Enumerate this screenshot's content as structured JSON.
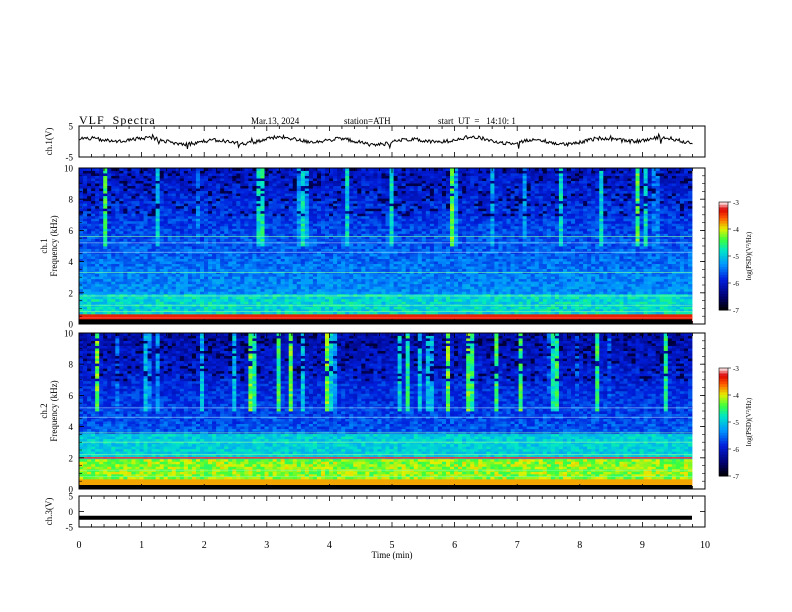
{
  "header": {
    "title": "VLF  Spectra",
    "date": "Mar.13, 2024",
    "station": "station=ATH",
    "start_ut": "start  UT  =   14:10: 1"
  },
  "chart_data": [
    {
      "type": "line",
      "ylabel": "ch.1(V)",
      "ylim": [
        -5,
        5
      ],
      "yticks": [
        "5",
        "-5"
      ],
      "xlim": [
        0,
        10
      ],
      "series": [
        {
          "values_desc": "noisy waveform around 0 V"
        }
      ]
    },
    {
      "type": "heatmap",
      "ylabel": "ch.1\nFrequency (kHz)",
      "ylim": [
        0,
        10
      ],
      "yticks": [
        "0",
        "2",
        "4",
        "6",
        "8",
        "10"
      ],
      "xlim": [
        0,
        9.8
      ],
      "colorbar": {
        "label": "log(PSD)(V²/Hz)",
        "range": [
          -7,
          -3
        ],
        "ticks": [
          "-3",
          "-4",
          "-5",
          "-6",
          "-7"
        ]
      }
    },
    {
      "type": "heatmap",
      "ylabel": "ch.2\nFrequency (kHz)",
      "ylim": [
        0,
        10
      ],
      "yticks": [
        "0",
        "2",
        "4",
        "6",
        "8",
        "10"
      ],
      "xlim": [
        0,
        9.8
      ],
      "colorbar": {
        "label": "log(PSD)(V²/Hz)",
        "range": [
          -7,
          -3
        ],
        "ticks": [
          "-3",
          "-4",
          "-5",
          "-6",
          "-7"
        ]
      }
    },
    {
      "type": "line",
      "ylabel": "ch.3(V)",
      "ylim": [
        -5,
        5
      ],
      "yticks": [
        "5",
        "0",
        "-5"
      ],
      "xlim": [
        0,
        10
      ],
      "series": [
        {
          "values_desc": "flat line near -2 V"
        }
      ]
    }
  ],
  "xaxis": {
    "label": "Time  (min)",
    "ticks": [
      "0",
      "1",
      "2",
      "3",
      "4",
      "5",
      "6",
      "7",
      "8",
      "9",
      "10"
    ]
  }
}
